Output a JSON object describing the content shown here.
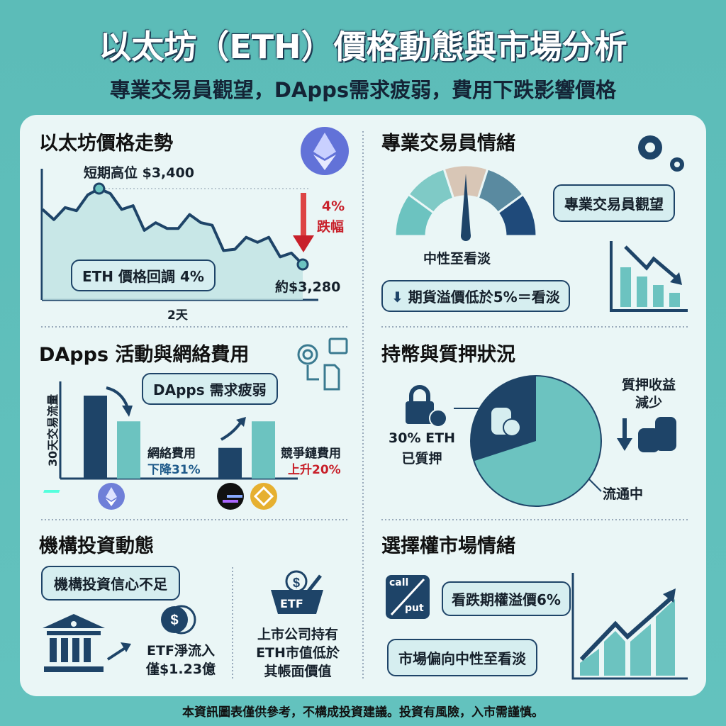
{
  "header": {
    "title": "以太坊（ETH）價格動態與市場分析",
    "subtitle": "專業交易員觀望，DApps需求疲弱，費用下跌影響價格"
  },
  "colors": {
    "navy": "#1e4468",
    "teal": "#6cc3c0",
    "red": "#c8202a",
    "background": "#5cbcb8",
    "panel": "#eaf6f6"
  },
  "price": {
    "title": "以太坊價格走勢",
    "high_label": "短期高位 $3,400",
    "drop_pct": "4%",
    "drop_label": "跌幅",
    "callout": "ETH 價格回調 4%",
    "end_label": "約$3,280",
    "x_label": "2天",
    "icon": "ethereum-logo-icon"
  },
  "chart_data": [
    {
      "type": "line",
      "xlabel": "2天",
      "values": [
        3367,
        3351,
        3370,
        3365,
        3390,
        3400,
        3392,
        3367,
        3373,
        3334,
        3346,
        3337,
        3337,
        3359,
        3346,
        3342,
        3302,
        3304,
        3323,
        3315,
        3323,
        3292,
        3298,
        3280
      ],
      "annotations": [
        "短期高位 $3,400",
        "約$3,280",
        "4% 跌幅"
      ]
    },
    {
      "type": "bar",
      "ylabel": "30天交易流量",
      "groups": [
        {
          "icon": "ethereum-logo-icon",
          "values": [
            1.0,
            0.69
          ]
        },
        {
          "icons": [
            "solana-logo-icon",
            "bnb-logo-icon"
          ],
          "values": [
            0.37,
            0.69
          ]
        }
      ]
    },
    {
      "type": "pie",
      "slices": [
        {
          "label": "30% ETH 已質押",
          "value": 30
        },
        {
          "label": "流通中",
          "value": 70
        }
      ]
    }
  ],
  "dapps": {
    "title": "DApps 活動與網絡費用",
    "callout": "DApps 需求疲弱",
    "y_label": "30天交易流量",
    "fee_label": "網絡費用",
    "fee_change": "下降31%",
    "rival_label": "競爭鏈費用",
    "rival_change": "上升20%"
  },
  "institution": {
    "title": "機構投資動態",
    "callout": "機構投資信心不足",
    "etf_line1": "ETF淨流入",
    "etf_line2": "僅$1.23億",
    "basket_label": "ETF",
    "company_lines": [
      "上市公司持有",
      "ETH市值低於",
      "其帳面價值"
    ]
  },
  "sentiment": {
    "title": "專業交易員情緒",
    "gauge_label": "中性至看淡",
    "callout": "專業交易員觀望",
    "futures": "期貨溢價低於5%＝看淡",
    "gauge_level": "neutral-to-bearish"
  },
  "staking": {
    "title": "持幣與質押狀況",
    "staked_line1": "30% ETH",
    "staked_line2": "已質押",
    "yield_line1": "質押收益",
    "yield_line2": "減少",
    "circulating": "流通中"
  },
  "options": {
    "title": "選擇權市場情緒",
    "call": "call",
    "put": "put",
    "callout": "看跌期權溢價6%",
    "bias": "市場偏向中性至看淡"
  },
  "footer": "本資訊圖表僅供參考，不構成投資建議。投資有風險，入市需謹慎。"
}
